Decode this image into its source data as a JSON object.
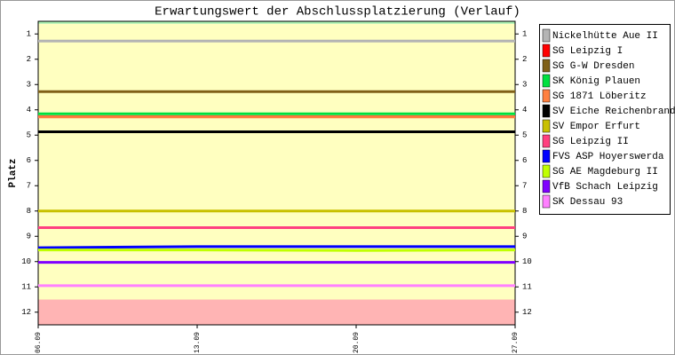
{
  "chart_data": {
    "type": "line",
    "title": "Erwartungswert der Abschlussplatzierung (Verlauf)",
    "y_label": "Platz",
    "categories": [
      "06.09",
      "13.09",
      "20.09",
      "27.09"
    ],
    "ylim": [
      12.5,
      0.5
    ],
    "yticks": [
      1,
      2,
      3,
      4,
      5,
      6,
      7,
      8,
      9,
      10,
      11,
      12
    ],
    "bands": [
      {
        "from": 0.5,
        "to": 0.6,
        "color": "#a8f0b0"
      },
      {
        "from": 0.6,
        "to": 11.5,
        "color": "#ffffc0"
      },
      {
        "from": 11.5,
        "to": 12.5,
        "color": "#ffb4b4"
      }
    ],
    "series": [
      {
        "name": "Nickelhütte Aue II",
        "color": "#b4b4b4",
        "values": [
          1.28,
          1.28,
          1.28,
          1.28
        ]
      },
      {
        "name": "SG Leipzig I",
        "color": "#ff0000",
        "values": [
          4.27,
          4.27,
          4.27,
          4.27
        ]
      },
      {
        "name": "SG G-W Dresden",
        "color": "#806018",
        "values": [
          3.28,
          3.28,
          3.28,
          3.28
        ]
      },
      {
        "name": "SK König Plauen",
        "color": "#00e040",
        "values": [
          4.16,
          4.16,
          4.16,
          4.16
        ]
      },
      {
        "name": "SG 1871 Löberitz",
        "color": "#ff8040",
        "values": [
          4.28,
          4.28,
          4.28,
          4.28
        ]
      },
      {
        "name": "SV Eiche Reichenbrand",
        "color": "#000000",
        "values": [
          4.87,
          4.87,
          4.87,
          4.87
        ]
      },
      {
        "name": "SV Empor Erfurt",
        "color": "#c8c000",
        "values": [
          8.0,
          8.0,
          8.0,
          8.0
        ]
      },
      {
        "name": "SG Leipzig II",
        "color": "#ff4080",
        "values": [
          8.66,
          8.66,
          8.66,
          8.66
        ]
      },
      {
        "name": "FVS ASP Hoyerswerda",
        "color": "#0000ff",
        "values": [
          9.45,
          9.41,
          9.41,
          9.41
        ]
      },
      {
        "name": "SG AE Magdeburg II",
        "color": "#c0ff00",
        "values": [
          9.54,
          9.54,
          9.56,
          9.54
        ]
      },
      {
        "name": "VfB Schach Leipzig",
        "color": "#8000ff",
        "values": [
          10.03,
          10.03,
          10.03,
          10.03
        ]
      },
      {
        "name": "SK Dessau 93",
        "color": "#ff80ff",
        "values": [
          10.95,
          10.95,
          10.95,
          10.95
        ]
      }
    ]
  }
}
